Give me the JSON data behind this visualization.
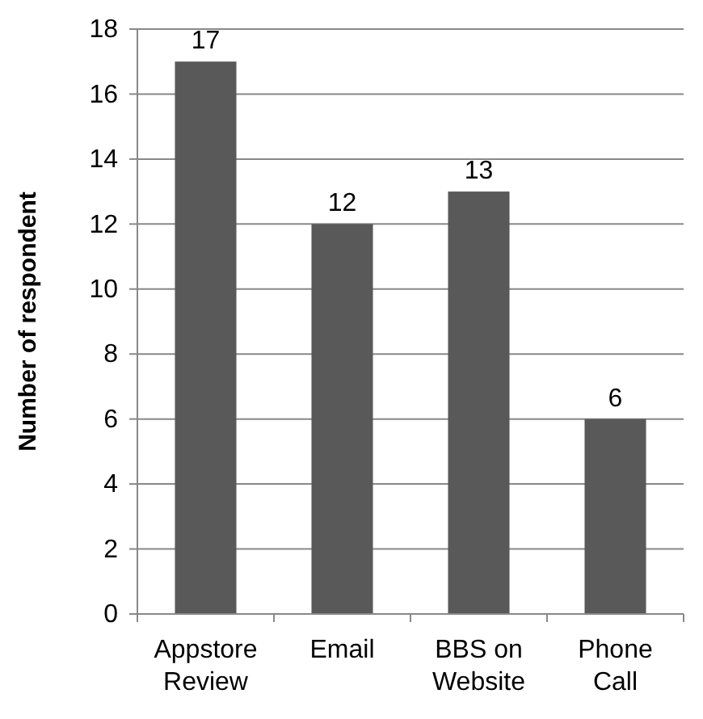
{
  "chart_data": {
    "type": "bar",
    "ylabel": "Number of respondent",
    "categories": [
      "Appstore Review",
      "Email",
      "BBS on Website",
      "Phone Call"
    ],
    "values": [
      17,
      12,
      13,
      6
    ],
    "color": "#595959",
    "ylim": [
      0,
      18
    ],
    "yticks": [
      0,
      2,
      4,
      6,
      8,
      10,
      12,
      14,
      16,
      18
    ],
    "grid": "y",
    "data_labels": true
  }
}
